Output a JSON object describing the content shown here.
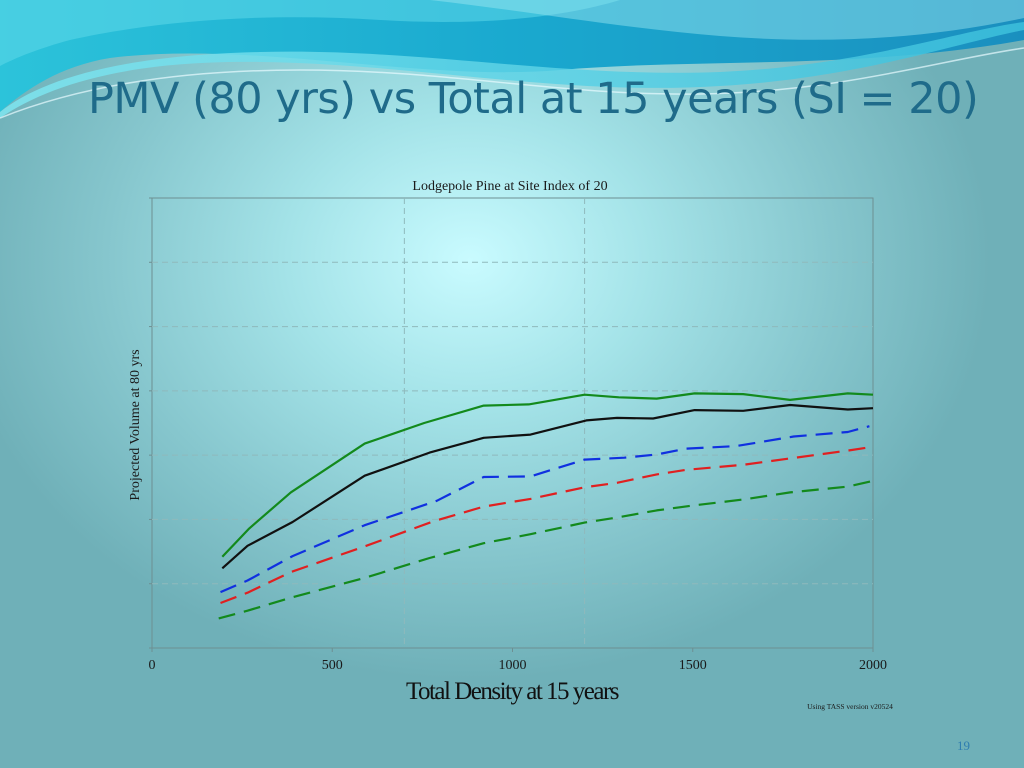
{
  "slide": {
    "title": "PMV (80 yrs) vs Total at 15 years (SI = 20)",
    "page_number": "19"
  },
  "colors": {
    "title": "#1f6b8a",
    "grid": "#8fb9bc",
    "axis": "#6d8f92",
    "series_green": "#138a1c",
    "series_black": "#111111",
    "series_blue": "#1030e0",
    "series_red": "#e02020"
  },
  "chart_data": {
    "type": "line",
    "title": "Lodgepole Pine at Site Index of 20",
    "xlabel": "Total Density at 15 years",
    "ylabel": "Projected Volume at 80 yrs",
    "footnote": "Using TASS version v20524",
    "xlim": [
      0,
      2000
    ],
    "ylim": [
      0,
      7
    ],
    "xticks": [
      0,
      500,
      1000,
      1500,
      2000
    ],
    "xtick_labels": [
      "0",
      "500",
      "1000",
      "1500",
      "2000"
    ],
    "yticks": [
      0,
      1,
      2,
      3,
      4,
      5,
      6,
      7
    ],
    "ytick_labels": [
      "",
      "",
      "",
      "",
      "",
      "",
      "",
      ""
    ],
    "x_grid": [
      700,
      1200
    ],
    "legend": "none",
    "series": [
      {
        "name": "Upper (green solid)",
        "color": "#138a1c",
        "dash": "solid",
        "x": [
          195,
          270,
          385,
          590,
          755,
          920,
          1045,
          1200,
          1295,
          1400,
          1505,
          1640,
          1770,
          1930,
          2000
        ],
        "y": [
          1.42,
          1.86,
          2.42,
          3.18,
          3.5,
          3.77,
          3.79,
          3.94,
          3.9,
          3.88,
          3.96,
          3.95,
          3.86,
          3.96,
          3.94
        ]
      },
      {
        "name": "Black solid",
        "color": "#111111",
        "dash": "solid",
        "x": [
          195,
          265,
          390,
          590,
          770,
          920,
          1050,
          1205,
          1290,
          1390,
          1505,
          1640,
          1770,
          1930,
          2000
        ],
        "y": [
          1.24,
          1.59,
          1.96,
          2.68,
          3.04,
          3.27,
          3.32,
          3.54,
          3.58,
          3.57,
          3.7,
          3.69,
          3.78,
          3.71,
          3.73
        ]
      },
      {
        "name": "Blue dashed",
        "color": "#1030e0",
        "dash": "long",
        "x": [
          190,
          265,
          390,
          590,
          790,
          920,
          1050,
          1200,
          1310,
          1400,
          1480,
          1620,
          1780,
          1930,
          1990
        ],
        "y": [
          0.87,
          1.05,
          1.43,
          1.91,
          2.29,
          2.66,
          2.67,
          2.93,
          2.96,
          3.01,
          3.1,
          3.14,
          3.29,
          3.36,
          3.45
        ]
      },
      {
        "name": "Red dashed",
        "color": "#e02020",
        "dash": "long",
        "x": [
          190,
          265,
          385,
          590,
          780,
          920,
          1050,
          1200,
          1290,
          1400,
          1480,
          1640,
          1770,
          1930,
          2000
        ],
        "y": [
          0.7,
          0.86,
          1.18,
          1.58,
          1.97,
          2.2,
          2.32,
          2.5,
          2.57,
          2.7,
          2.77,
          2.85,
          2.95,
          3.07,
          3.13
        ]
      },
      {
        "name": "Lower (green dashed)",
        "color": "#138a1c",
        "dash": "long",
        "x": [
          185,
          265,
          390,
          590,
          770,
          920,
          1050,
          1200,
          1290,
          1400,
          1505,
          1640,
          1770,
          1930,
          2000
        ],
        "y": [
          0.46,
          0.58,
          0.79,
          1.09,
          1.4,
          1.63,
          1.77,
          1.95,
          2.03,
          2.14,
          2.22,
          2.31,
          2.42,
          2.51,
          2.6
        ]
      }
    ]
  }
}
